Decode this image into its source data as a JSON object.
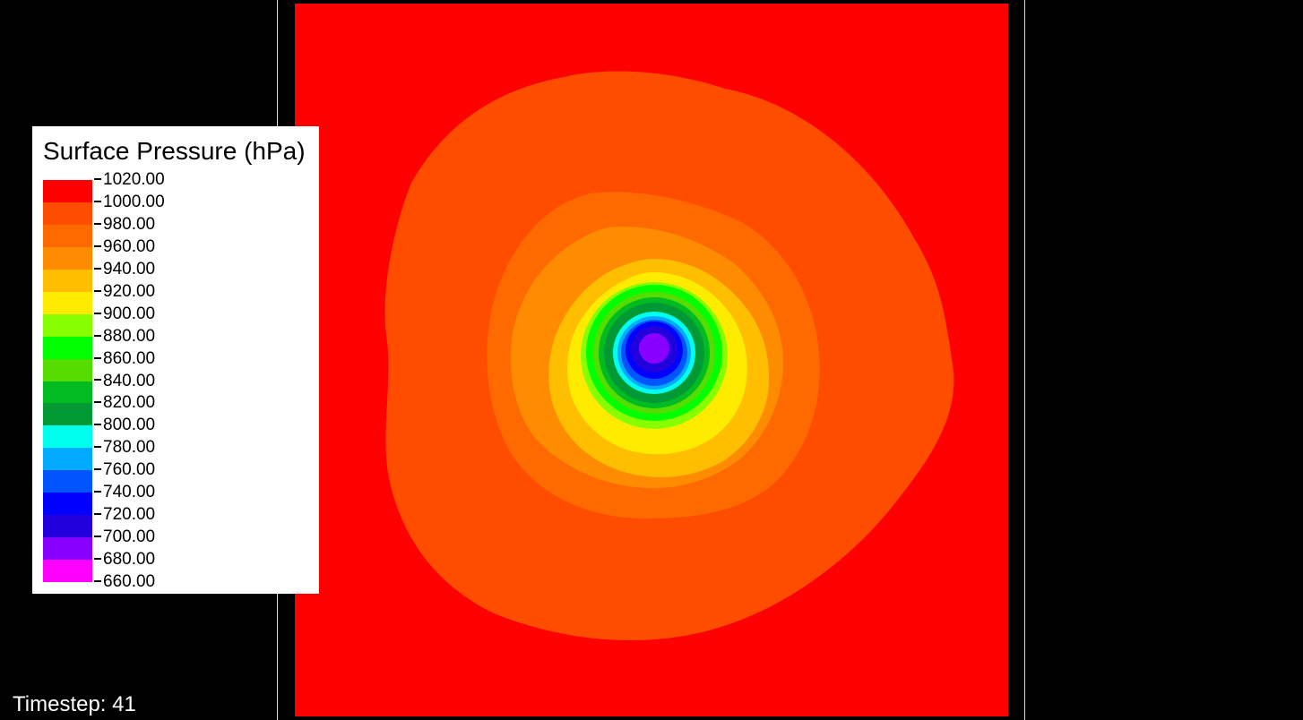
{
  "legend": {
    "title": "Surface Pressure (hPa)",
    "levels": [
      {
        "value": "1020.00",
        "color": "#ff0000"
      },
      {
        "value": "1000.00",
        "color": "#ff4d00"
      },
      {
        "value": "980.00",
        "color": "#ff6a00"
      },
      {
        "value": "960.00",
        "color": "#ff8c00"
      },
      {
        "value": "940.00",
        "color": "#ffbf00"
      },
      {
        "value": "920.00",
        "color": "#ffeb00"
      },
      {
        "value": "900.00",
        "color": "#88ff00"
      },
      {
        "value": "880.00",
        "color": "#00ff00"
      },
      {
        "value": "860.00",
        "color": "#55dd00"
      },
      {
        "value": "840.00",
        "color": "#00bb22"
      },
      {
        "value": "820.00",
        "color": "#009933"
      },
      {
        "value": "800.00",
        "color": "#00ffee"
      },
      {
        "value": "780.00",
        "color": "#00aaff"
      },
      {
        "value": "760.00",
        "color": "#0055ff"
      },
      {
        "value": "740.00",
        "color": "#0000ff"
      },
      {
        "value": "720.00",
        "color": "#2200dd"
      },
      {
        "value": "700.00",
        "color": "#8800ff"
      },
      {
        "value": "680.00",
        "color": "#ff00ff"
      },
      {
        "value": "660.00",
        "color": "#ff00ff"
      }
    ]
  },
  "timestep": {
    "label": "Timestep: 41"
  },
  "chart_data": {
    "type": "heatmap",
    "title": "Surface Pressure (hPa)",
    "description_units": "hPa",
    "background_color": "#000000",
    "field_colors": {
      "outer": "#ff0000",
      "ring_1000": "#ff4d00",
      "ring_980": "#ff6a00",
      "ring_960": "#ff8c00",
      "ring_940": "#ffbf00",
      "ring_920": "#ffeb00",
      "ring_900": "#88ff00",
      "ring_880": "#00ff00",
      "ring_860": "#55dd00",
      "ring_840": "#00bb22",
      "ring_820": "#009933",
      "ring_800": "#00ffee",
      "ring_780": "#00aaff",
      "ring_760": "#0055ff",
      "ring_740": "#0000ff",
      "ring_720": "#2200dd",
      "center_700": "#8800ff"
    },
    "contour_levels": [
      1020,
      1000,
      980,
      960,
      940,
      920,
      900,
      880,
      860,
      840,
      820,
      800,
      780,
      760,
      740,
      720,
      700,
      680,
      660
    ],
    "minimum_at_center": 700
  }
}
